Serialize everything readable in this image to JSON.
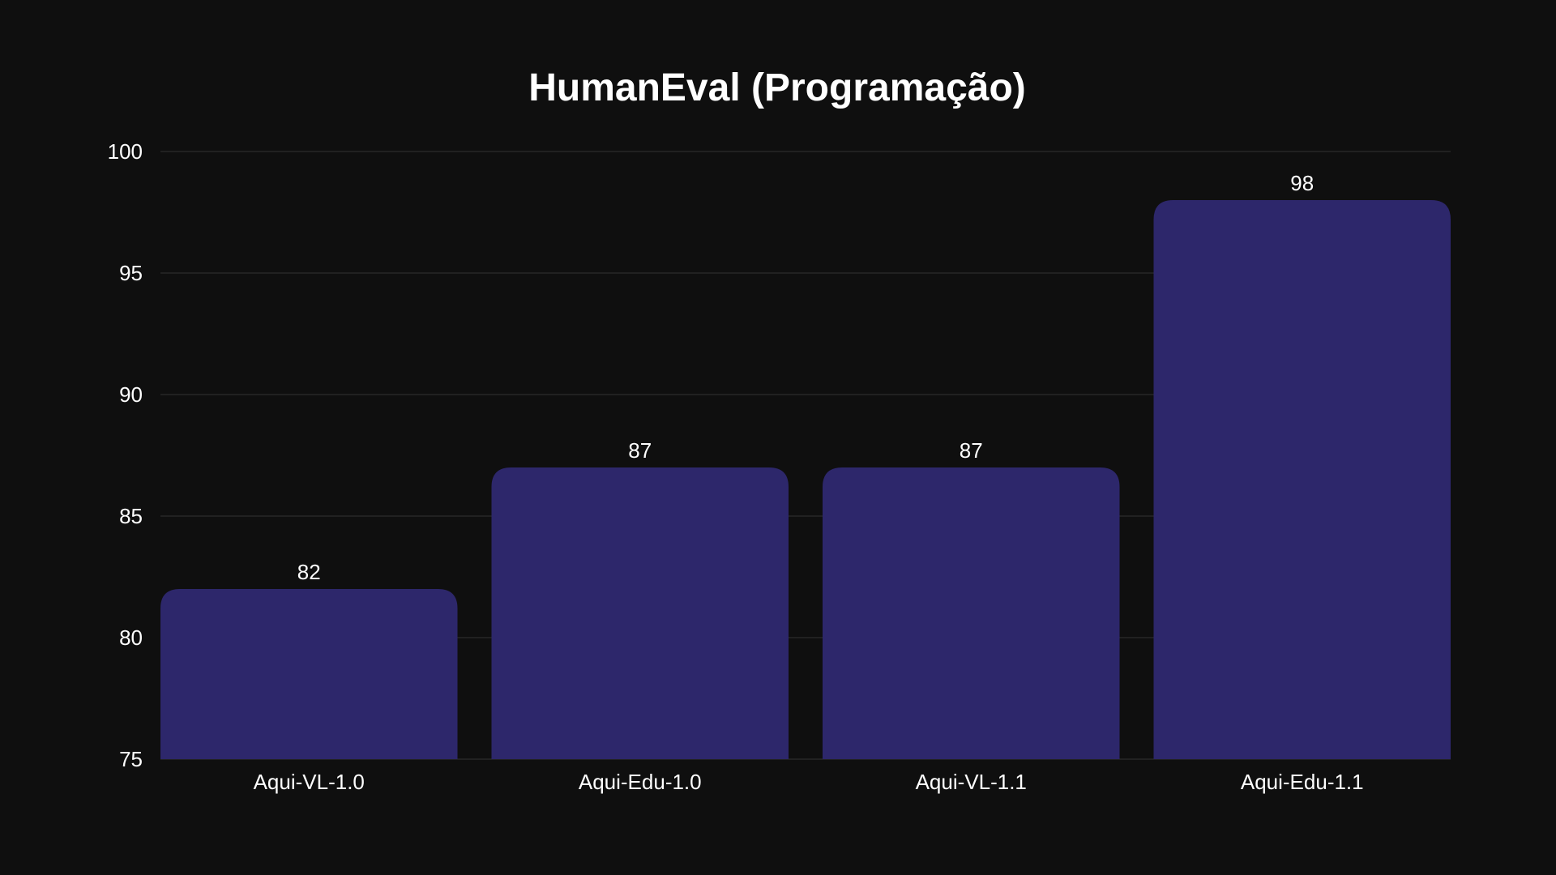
{
  "chart_data": {
    "type": "bar",
    "title": "HumanEval (Programação)",
    "xlabel": "",
    "ylabel": "",
    "categories": [
      "Aqui-VL-1.0",
      "Aqui-Edu-1.0",
      "Aqui-VL-1.1",
      "Aqui-Edu-1.1"
    ],
    "values": [
      82,
      87,
      87,
      98
    ],
    "data_labels": [
      "82",
      "87",
      "87",
      "98"
    ],
    "ylim": [
      75,
      100
    ],
    "yticks": [
      75,
      80,
      85,
      90,
      95,
      100
    ],
    "ytick_labels": [
      "75",
      "80",
      "85",
      "90",
      "95",
      "100"
    ],
    "grid": true,
    "colors": {
      "background": "#0f0f0f",
      "bar": "#2d276b",
      "grid": "#333333",
      "text": "#ffffff"
    }
  }
}
